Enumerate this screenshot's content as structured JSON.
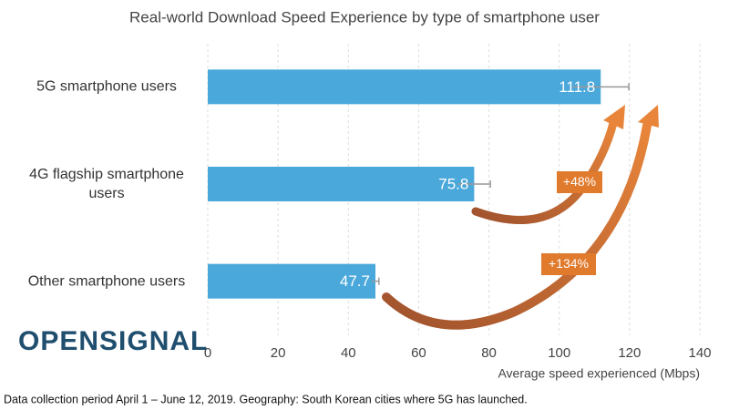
{
  "chart_data": {
    "type": "hbar",
    "title": "Real-world Download Speed Experience by type of smartphone user",
    "categories": [
      "5G smartphone users",
      "4G flagship smartphone users",
      "Other smartphone users"
    ],
    "values": [
      111.8,
      75.8,
      47.7
    ],
    "errors": [
      8,
      4.6,
      1
    ],
    "color": "#4aa8db",
    "xlim": [
      0,
      140
    ],
    "xticks": [
      0,
      20,
      40,
      60,
      80,
      100,
      120,
      140
    ],
    "x_label": "Average speed experienced (Mbps)",
    "grid": true,
    "annotations": [
      "+48%",
      "+134%"
    ]
  },
  "logo": "OPENSIGNAL",
  "footnote": "Data collection period April 1 – June 12, 2019. Geography: South Korean cities where 5G has launched."
}
